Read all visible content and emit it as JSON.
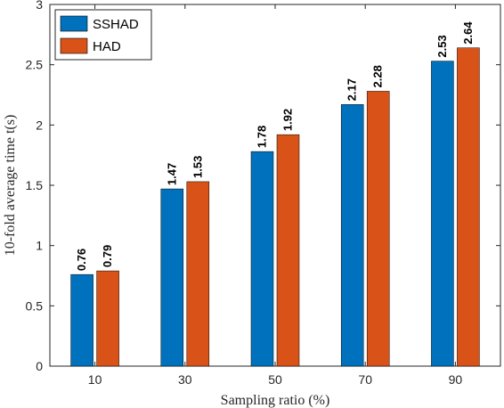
{
  "chart_data": {
    "type": "bar",
    "categories": [
      "10",
      "30",
      "50",
      "70",
      "90"
    ],
    "series": [
      {
        "name": "SSHAD",
        "values": [
          0.76,
          1.47,
          1.78,
          2.17,
          2.53
        ],
        "value_labels": [
          "0.76",
          "1.47",
          "1.78",
          "2.17",
          "2.53"
        ],
        "color": "#0072BD"
      },
      {
        "name": "HAD",
        "values": [
          0.79,
          1.53,
          1.92,
          2.28,
          2.64
        ],
        "value_labels": [
          "0.79",
          "1.53",
          "1.92",
          "2.28",
          "2.64"
        ],
        "color": "#D95319"
      }
    ],
    "xlabel": "Sampling ratio (%)",
    "ylabel": "10-fold average time t(s)",
    "ylim": [
      0,
      3
    ],
    "yticks": [
      0,
      0.5,
      1,
      1.5,
      2,
      2.5,
      3
    ],
    "ytick_labels": [
      "0",
      "0.5",
      "1",
      "1.5",
      "2",
      "2.5",
      "3"
    ],
    "grid": false,
    "legend_position": "top-left"
  }
}
